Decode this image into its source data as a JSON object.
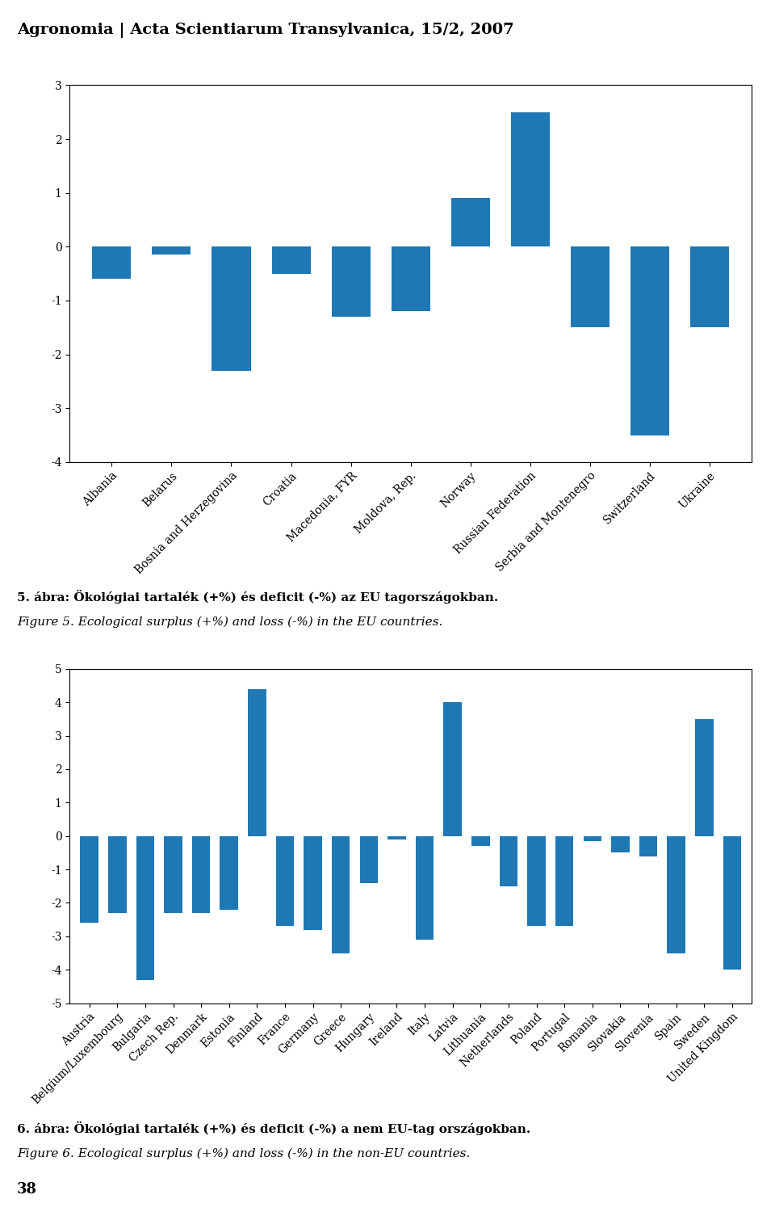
{
  "chart_data": [
    {
      "type": "bar",
      "title": "5. ábra: Ökológiai tartalék (+%) és deficit (-%) az EU tagországokban.",
      "subtitle": "Figure 5. Ecological surplus (+%) and loss (-%) in the EU countries.",
      "annotations": [
        "Agronomia | Acta Scientiarum Transylvanica, 15/2, 2007"
      ],
      "categories": [
        "Albania",
        "Belarus",
        "Bosnia and Herzegovina",
        "Croatia",
        "Macedonia, FYR",
        "Moldova, Rep.",
        "Norway",
        "Russian Federation",
        "Serbia and Montenegro",
        "Switzerland",
        "Ukraine"
      ],
      "values": [
        -0.6,
        -0.15,
        -2.3,
        -0.5,
        -1.3,
        -1.2,
        0.9,
        2.5,
        -1.5,
        -3.5,
        -1.5
      ],
      "ylim": [
        -4,
        3
      ],
      "yticks": [
        -4,
        -3,
        -2,
        -1,
        0,
        1,
        2,
        3
      ],
      "grid": false
    },
    {
      "type": "bar",
      "title": "6. ábra: Ökológiai tartalék (+%) és deficit (-%) a nem EU-tag országokban.",
      "subtitle": "Figure 6. Ecological surplus (+%) and loss (-%) in the non-EU countries.",
      "annotations": [
        "38"
      ],
      "categories": [
        "Austria",
        "Belgium/Luxembourg",
        "Bulgaria",
        "Czech Rep.",
        "Denmark",
        "Estonia",
        "Finland",
        "France",
        "Germany",
        "Greece",
        "Hungary",
        "Ireland",
        "Italy",
        "Latvia",
        "Lithuania",
        "Netherlands",
        "Poland",
        "Portugal",
        "Romania",
        "Slovakia",
        "Slovenia",
        "Spain",
        "Sweden",
        "United Kingdom"
      ],
      "values": [
        -2.6,
        -2.3,
        -4.3,
        -2.3,
        -2.3,
        -2.2,
        4.4,
        -2.7,
        -2.8,
        -3.5,
        -1.4,
        -0.1,
        -3.1,
        4.0,
        -0.3,
        -1.5,
        -2.7,
        -2.7,
        -0.15,
        -0.5,
        -0.6,
        -3.5,
        3.5,
        -4.0
      ],
      "ylim": [
        -5,
        5
      ],
      "yticks": [
        -5,
        -4,
        -3,
        -2,
        -1,
        0,
        1,
        2,
        3,
        4,
        5
      ],
      "grid": false
    }
  ]
}
